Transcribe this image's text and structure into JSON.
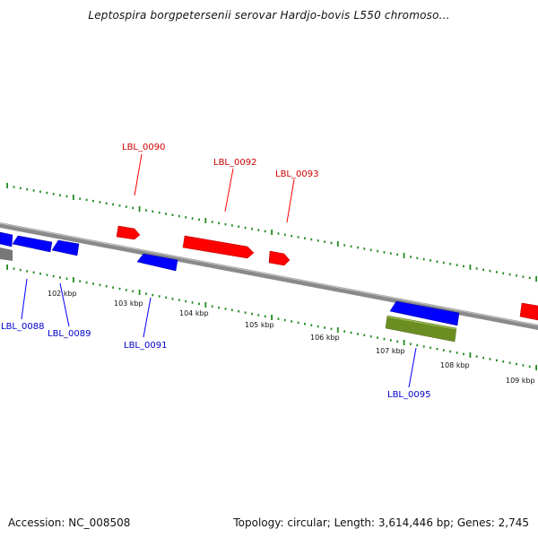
{
  "title": "Leptospira borgpetersenii serovar Hardjo-bovis L550 chromoso...",
  "footer": {
    "accession": "Accession: NC_008508",
    "topology": "Topology: circular; Length: 3,614,446 bp; Genes: 2,745"
  },
  "colors": {
    "forward_gene": "#ff0000",
    "reverse_gene": "#0000ff",
    "other_feature": "#6b8e23",
    "backbone": "#888888",
    "tick": "#228b22",
    "forward_label": "#cc0000",
    "reverse_label": "#0000cc"
  },
  "scale_labels": [
    "102 kbp",
    "103 kbp",
    "104 kbp",
    "105 kbp",
    "106 kbp",
    "107 kbp",
    "108 kbp",
    "109 kbp"
  ],
  "gene_labels": {
    "forward": [
      "LBL_0090",
      "LBL_0092",
      "LBL_0093"
    ],
    "reverse": [
      "LBL_0088",
      "LBL_0089",
      "LBL_0091",
      "LBL_0095"
    ]
  }
}
